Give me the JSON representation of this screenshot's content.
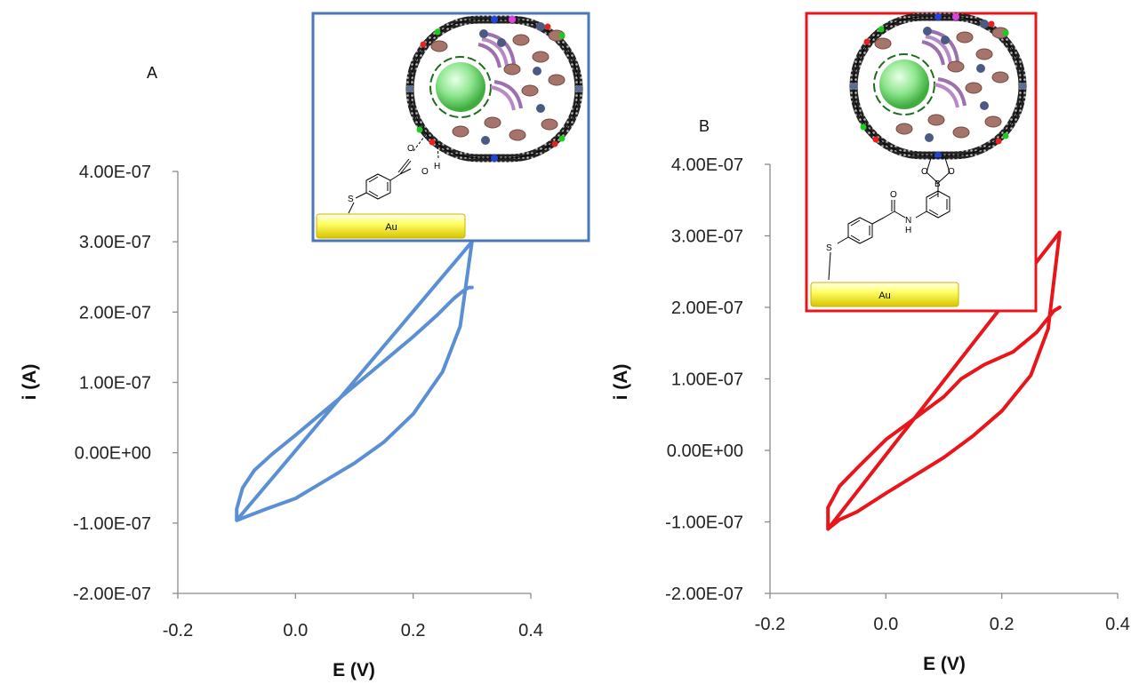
{
  "chart_data": [
    {
      "type": "line",
      "panel_label": "A",
      "xlabel": "E (V)",
      "ylabel": "i (A)",
      "xlim": [
        -0.2,
        0.4
      ],
      "ylim": [
        -2e-07,
        4e-07
      ],
      "x_ticks": [
        "-0.2",
        "0.0",
        "0.2",
        "0.4"
      ],
      "y_ticks": [
        "-2.00E-07",
        "-1.00E-07",
        "0.00E+00",
        "1.00E-07",
        "2.00E-07",
        "3.00E-07",
        "4.00E-07"
      ],
      "grid": false,
      "color": "#5b8fd4",
      "series": [
        {
          "x": [
            -0.1,
            -0.05,
            0.0,
            0.05,
            0.1,
            0.15,
            0.2,
            0.25,
            0.28,
            0.3,
            -0.1,
            -0.1,
            -0.09,
            -0.07,
            -0.04,
            0.0,
            0.05,
            0.1,
            0.15,
            0.2,
            0.24,
            0.27,
            0.285,
            0.295,
            0.3
          ],
          "y": [
            -9.6e-08,
            -8e-08,
            -6.5e-08,
            -4e-08,
            -1.5e-08,
            1.5e-08,
            5.5e-08,
            1.15e-07,
            1.8e-07,
            3e-07,
            -9.6e-08,
            -8e-08,
            -5e-08,
            -2.5e-08,
            -2e-09,
            2.5e-08,
            6e-08,
            9.5e-08,
            1.3e-07,
            1.65e-07,
            1.95e-07,
            2.2e-07,
            2.3e-07,
            2.35e-07,
            2.35e-07
          ]
        }
      ],
      "inset": {
        "au_label": "Au",
        "border_color": "#4a78b8",
        "atom_labels": [
          "S",
          "O",
          "O",
          "H"
        ]
      }
    },
    {
      "type": "line",
      "panel_label": "B",
      "xlabel": "E (V)",
      "ylabel": "i (A)",
      "xlim": [
        -0.2,
        0.4
      ],
      "ylim": [
        -2e-07,
        4e-07
      ],
      "x_ticks": [
        "-0.2",
        "0.0",
        "0.2",
        "0.4"
      ],
      "y_ticks": [
        "-2.00E-07",
        "-1.00E-07",
        "0.00E+00",
        "1.00E-07",
        "2.00E-07",
        "3.00E-07",
        "4.00E-07"
      ],
      "grid": false,
      "color": "#e8161b",
      "series": [
        {
          "x": [
            -0.1,
            -0.08,
            -0.05,
            0.0,
            0.05,
            0.1,
            0.15,
            0.2,
            0.25,
            0.28,
            0.3,
            -0.1,
            -0.1,
            -0.08,
            -0.05,
            0.0,
            0.05,
            0.1,
            0.13,
            0.17,
            0.22,
            0.26,
            0.29,
            0.3
          ],
          "y": [
            -1.1e-07,
            -9.7e-08,
            -8.6e-08,
            -6e-08,
            -3.5e-08,
            -1e-08,
            2e-08,
            5.5e-08,
            1.05e-07,
            1.7e-07,
            3.05e-07,
            -1.1e-07,
            -8e-08,
            -5e-08,
            -2.5e-08,
            1.5e-08,
            4.5e-08,
            7.5e-08,
            1e-07,
            1.2e-07,
            1.38e-07,
            1.65e-07,
            1.95e-07,
            2e-07
          ]
        }
      ],
      "inset": {
        "au_label": "Au",
        "border_color": "#e8161b",
        "atom_labels": [
          "S",
          "O",
          "N",
          "H",
          "O",
          "B",
          "O"
        ]
      }
    }
  ]
}
